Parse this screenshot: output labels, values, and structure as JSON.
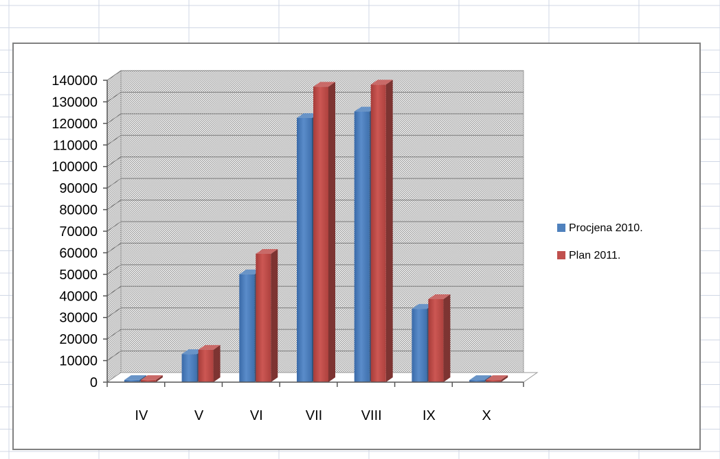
{
  "chart_data": {
    "type": "bar",
    "categories": [
      "IV",
      "V",
      "VI",
      "VII",
      "VIII",
      "IX",
      "X"
    ],
    "series": [
      {
        "name": "Procjena 2010.",
        "color": "#4F81BD",
        "values": [
          1000,
          13000,
          50000,
          122500,
          125500,
          34000,
          0
        ]
      },
      {
        "name": "Plan 2011.",
        "color": "#C0504D",
        "values": [
          1000,
          15000,
          59500,
          137000,
          138000,
          38500,
          0
        ]
      }
    ],
    "yticks": [
      "0",
      "10000",
      "20000",
      "30000",
      "40000",
      "50000",
      "60000",
      "70000",
      "80000",
      "90000",
      "100000",
      "110000",
      "120000",
      "130000",
      "140000"
    ],
    "ylim": [
      0,
      140000
    ],
    "grid": true,
    "legend_position": "right",
    "style": "3d-clustered-column"
  }
}
